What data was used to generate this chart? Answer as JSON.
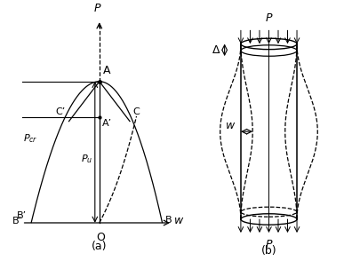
{
  "fig_width": 4.06,
  "fig_height": 3.03,
  "dpi": 100,
  "bg_color": "#ffffff",
  "line_color": "#000000",
  "label_a": "(a)",
  "label_b": "(b)",
  "text_P_left": "P",
  "text_w_axis": "w",
  "text_O": "O",
  "text_A": "A",
  "text_Aprime": "A’",
  "text_B": "B",
  "text_Bprime": "B’",
  "text_C": "C",
  "text_Cprime": "C’",
  "text_Pcr": "P",
  "text_Pcr_sub": "cr",
  "text_Pu": "P",
  "text_Pu_sub": "u",
  "text_P_right_top": "P",
  "text_P_right_bot": "P",
  "text_delta": "Δ",
  "text_w_right": "w"
}
